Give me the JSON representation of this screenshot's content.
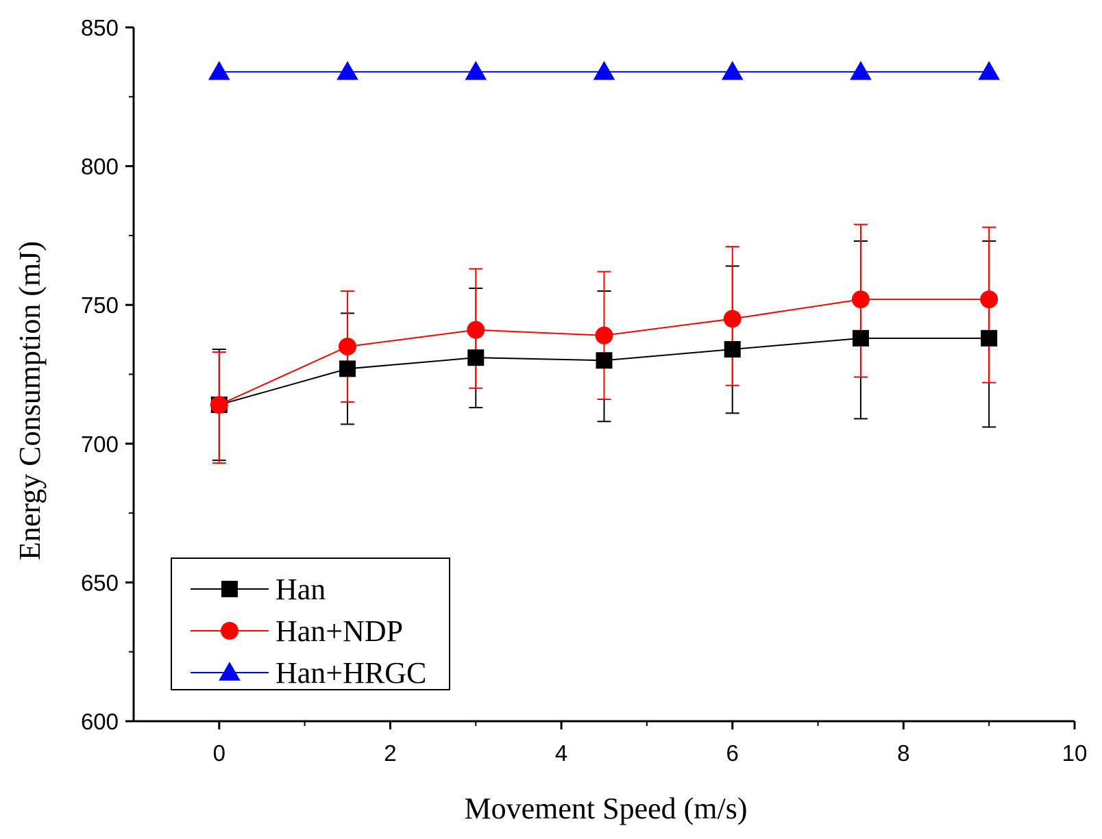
{
  "chart_data": {
    "type": "line",
    "title": "",
    "xlabel": "Movement Speed (m/s)",
    "ylabel": "Energy Consumption (mJ)",
    "xlim": [
      -1,
      10
    ],
    "ylim": [
      600,
      850
    ],
    "x_ticks": [
      "0",
      "2",
      "4",
      "6",
      "8",
      "10"
    ],
    "y_ticks": [
      "600",
      "650",
      "700",
      "750",
      "800",
      "850"
    ],
    "x": [
      0,
      1.5,
      3,
      4.5,
      6,
      7.5,
      9
    ],
    "legend_position": "bottom-left",
    "grid": false,
    "series": [
      {
        "name": "Han",
        "color": "#000000",
        "marker": "square",
        "values": [
          714,
          727,
          731,
          730,
          734,
          738,
          738
        ],
        "error_low": [
          694,
          707,
          713,
          708,
          711,
          709,
          706
        ],
        "error_high": [
          734,
          747,
          756,
          755,
          764,
          773,
          773
        ]
      },
      {
        "name": "Han+NDP",
        "color": "#ff0000",
        "marker": "circle",
        "values": [
          714,
          735,
          741,
          739,
          745,
          752,
          752
        ],
        "error_low": [
          693,
          715,
          720,
          716,
          721,
          724,
          722
        ],
        "error_high": [
          733,
          755,
          763,
          762,
          771,
          779,
          778
        ]
      },
      {
        "name": "Han+HRGC",
        "color": "#0000ff",
        "marker": "triangle",
        "values": [
          834,
          834,
          834,
          834,
          834,
          834,
          834
        ]
      }
    ]
  }
}
